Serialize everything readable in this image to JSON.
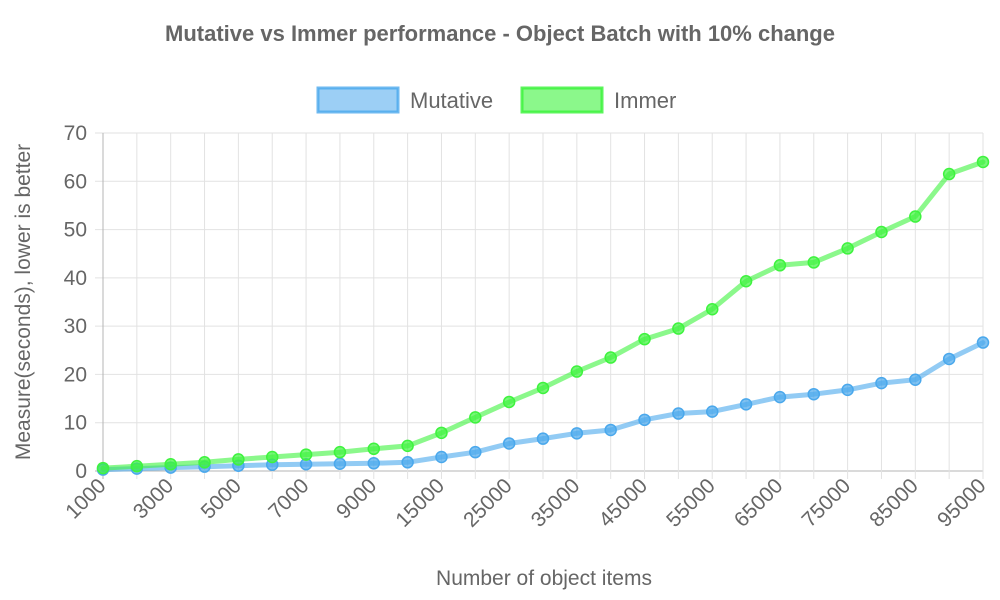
{
  "chart_data": {
    "type": "line",
    "title": "Mutative vs Immer performance - Object Batch with 10% change",
    "xlabel": "Number of object items",
    "ylabel": "Measure(seconds), lower is better",
    "ylim": [
      0,
      70
    ],
    "yticks": [
      0,
      10,
      20,
      30,
      40,
      50,
      60,
      70
    ],
    "categories": [
      "1000",
      "2000",
      "3000",
      "4000",
      "5000",
      "6000",
      "7000",
      "8000",
      "9000",
      "10000",
      "15000",
      "20000",
      "25000",
      "30000",
      "35000",
      "40000",
      "45000",
      "50000",
      "55000",
      "60000",
      "65000",
      "70000",
      "75000",
      "80000",
      "85000",
      "90000",
      "95000"
    ],
    "shown_tick_labels": [
      "1000",
      "3000",
      "5000",
      "7000",
      "9000",
      "15000",
      "25000",
      "35000",
      "45000",
      "55000",
      "65000",
      "75000",
      "85000",
      "95000"
    ],
    "grid": true,
    "legend_position": "top",
    "series": [
      {
        "name": "Mutative",
        "color": "#4aa8ec",
        "values": [
          0.3,
          0.5,
          0.7,
          0.9,
          1.1,
          1.3,
          1.4,
          1.5,
          1.6,
          1.8,
          2.9,
          3.9,
          5.7,
          6.7,
          7.8,
          8.5,
          10.6,
          11.9,
          12.3,
          13.8,
          15.3,
          15.9,
          16.8,
          18.2,
          18.9,
          23.2,
          26.6
        ]
      },
      {
        "name": "Immer",
        "color": "#3ef33e",
        "values": [
          0.6,
          1.0,
          1.4,
          1.8,
          2.4,
          2.9,
          3.4,
          3.9,
          4.6,
          5.2,
          7.9,
          11.1,
          14.3,
          17.2,
          20.6,
          23.5,
          27.3,
          29.5,
          33.5,
          39.3,
          42.6,
          43.2,
          46.1,
          49.5,
          52.7,
          61.5,
          64.0
        ]
      }
    ]
  }
}
